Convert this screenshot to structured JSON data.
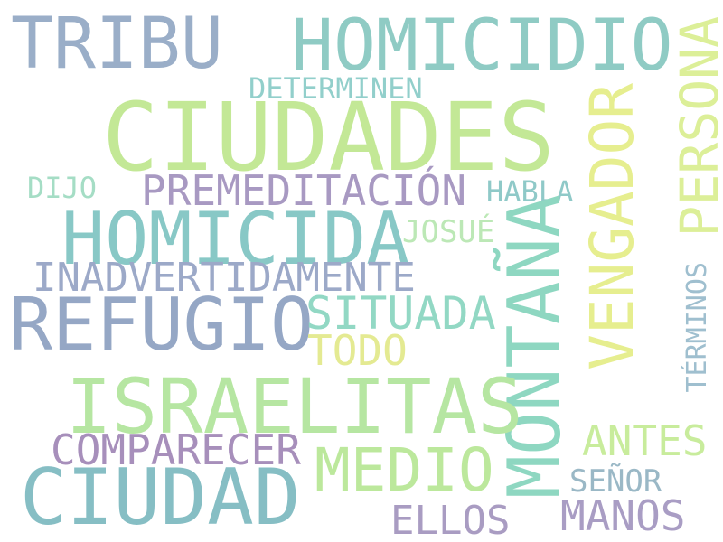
{
  "words": {
    "tribu": {
      "text": "TRIBU",
      "color": "#9aaec8"
    },
    "homicidio": {
      "text": "HOMICIDIO",
      "color": "#8fcbc4"
    },
    "persona": {
      "text": "PERSONA",
      "color": "#dcef98"
    },
    "determinen": {
      "text": "DETERMINEN",
      "color": "#92cfcb"
    },
    "ciudades": {
      "text": "CIUDADES",
      "color": "#c3e896"
    },
    "vengador": {
      "text": "VENGADOR",
      "color": "#e6ee8f"
    },
    "dijo": {
      "text": "DIJO",
      "color": "#a5ddc5"
    },
    "premeditacion": {
      "text": "PREMEDITACIÓN",
      "color": "#a899c2"
    },
    "habla": {
      "text": "HABLA",
      "color": "#8fc9c8"
    },
    "montana": {
      "text": "MONTAÑA",
      "color": "#8ed7c1"
    },
    "homicida": {
      "text": "HOMICIDA",
      "color": "#88c8c6"
    },
    "josue": {
      "text": "JOSUÉ",
      "color": "#bce8b6"
    },
    "inadvertidamente": {
      "text": "INADVERTIDAMENTE",
      "color": "#9ca9c8"
    },
    "terminos": {
      "text": "TÉRMINOS",
      "color": "#9fbfcf"
    },
    "refugio": {
      "text": "REFUGIO",
      "color": "#95a7c5"
    },
    "situada": {
      "text": "SITUADA",
      "color": "#92d8c4"
    },
    "todo": {
      "text": "TODO",
      "color": "#e4ea92"
    },
    "israelitas": {
      "text": "ISRAELITAS",
      "color": "#b6e6a2"
    },
    "antes": {
      "text": "ANTES",
      "color": "#c8ec9c"
    },
    "comparecer": {
      "text": "COMPARECER",
      "color": "#a78fbb"
    },
    "medio": {
      "text": "MEDIO",
      "color": "#bce89c"
    },
    "ciudad": {
      "text": "CIUDAD",
      "color": "#86bec4"
    },
    "senor": {
      "text": "SEÑOR",
      "color": "#9ab8c6"
    },
    "ellos": {
      "text": "ELLOS",
      "color": "#a99cc2"
    },
    "manos": {
      "text": "MANOS",
      "color": "#a99dc4"
    }
  }
}
